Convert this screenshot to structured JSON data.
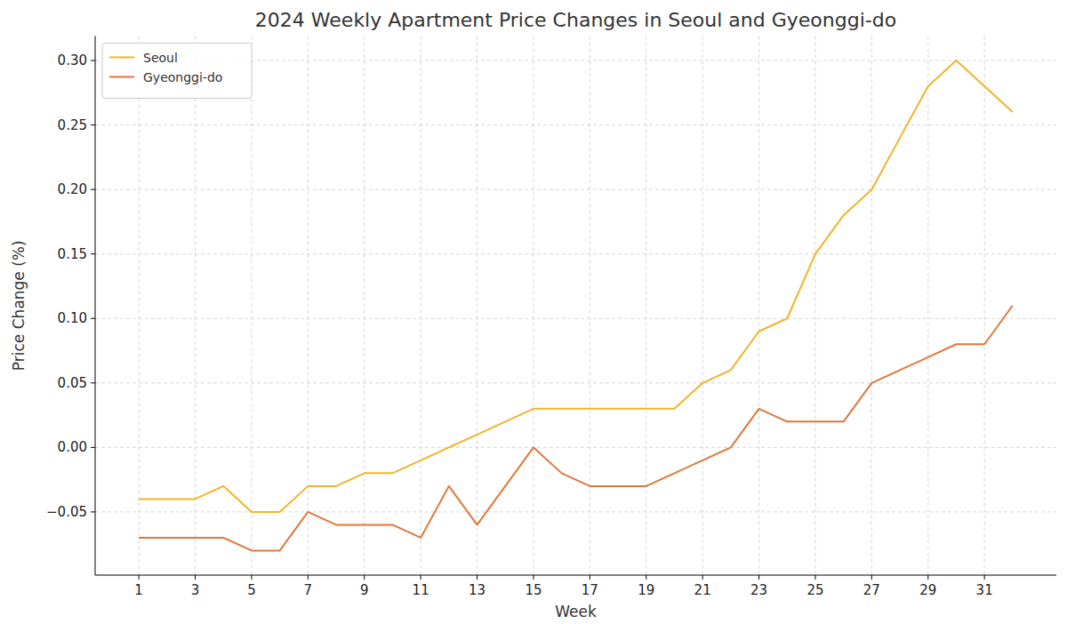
{
  "chart_data": {
    "type": "line",
    "title": "2024 Weekly Apartment Price Changes in Seoul and Gyeonggi-do",
    "x_label": "Week",
    "y_label": "Price Change (%)",
    "x": [
      1,
      2,
      3,
      4,
      5,
      6,
      7,
      8,
      9,
      10,
      11,
      12,
      13,
      14,
      15,
      16,
      17,
      18,
      19,
      20,
      21,
      22,
      23,
      24,
      25,
      26,
      27,
      28,
      29,
      30,
      31,
      32
    ],
    "series": [
      {
        "name": "Seoul",
        "color": "#f0b429",
        "values": [
          -0.04,
          -0.04,
          -0.04,
          -0.03,
          -0.05,
          -0.05,
          -0.03,
          -0.03,
          -0.02,
          -0.02,
          -0.01,
          0.0,
          0.01,
          0.02,
          0.03,
          0.03,
          0.03,
          0.03,
          0.03,
          0.03,
          0.05,
          0.06,
          0.09,
          0.1,
          0.15,
          0.18,
          0.2,
          0.24,
          0.28,
          0.3,
          0.28,
          0.26
        ]
      },
      {
        "name": "Gyeonggi-do",
        "color": "#e0763a",
        "values": [
          -0.07,
          -0.07,
          -0.07,
          -0.07,
          -0.08,
          -0.08,
          -0.05,
          -0.06,
          -0.06,
          -0.06,
          -0.07,
          -0.03,
          -0.06,
          -0.03,
          0.0,
          -0.02,
          -0.03,
          -0.03,
          -0.03,
          -0.02,
          -0.01,
          0.0,
          0.03,
          0.02,
          0.02,
          0.02,
          0.05,
          0.06,
          0.07,
          0.08,
          0.08,
          0.11
        ]
      }
    ],
    "xlim": [
      -0.55,
      33.55
    ],
    "xticks": [
      1,
      3,
      5,
      7,
      9,
      11,
      13,
      15,
      17,
      19,
      21,
      23,
      25,
      27,
      29,
      31
    ],
    "ylim": [
      -0.099,
      0.319
    ],
    "yticks": [
      {
        "value": -0.05,
        "label": "−0.05"
      },
      {
        "value": 0,
        "label": "0.00"
      },
      {
        "value": 0.05,
        "label": "0.05"
      },
      {
        "value": 0.1,
        "label": "0.10"
      },
      {
        "value": 0.15,
        "label": "0.15"
      },
      {
        "value": 0.2,
        "label": "0.20"
      },
      {
        "value": 0.25,
        "label": "0.25"
      },
      {
        "value": 0.3,
        "label": "0.30"
      }
    ],
    "grid": true,
    "legend": "upper left"
  }
}
